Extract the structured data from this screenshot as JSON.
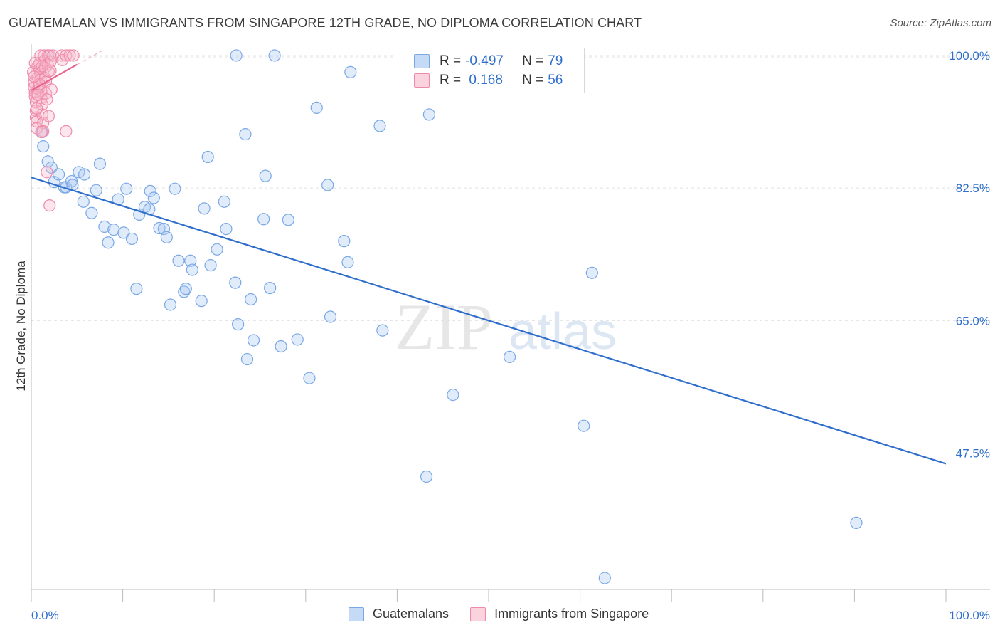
{
  "title": "GUATEMALAN VS IMMIGRANTS FROM SINGAPORE 12TH GRADE, NO DIPLOMA CORRELATION CHART",
  "source": "Source: ZipAtlas.com",
  "watermark": {
    "zip": "ZIP",
    "atlas": "atlas"
  },
  "legend": {
    "rows": [
      {
        "r_label": "R = ",
        "r_value": "-0.497",
        "n_label": "N = ",
        "n_value": "79",
        "color": "#a9c8f0"
      },
      {
        "r_label": "R = ",
        "r_value": " 0.168",
        "n_label": "N = ",
        "n_value": "56",
        "color": "#f7b8cb"
      }
    ]
  },
  "bottom_legend": [
    "Guatemalans",
    "Immigrants from Singapore"
  ],
  "chart_data": {
    "type": "scatter",
    "title": "GUATEMALAN VS IMMIGRANTS FROM SINGAPORE 12TH GRADE, NO DIPLOMA CORRELATION CHART",
    "xlabel": "",
    "ylabel": "12th Grade, No Diploma",
    "xlim": [
      0,
      100
    ],
    "ylim": [
      29.5,
      101.5
    ],
    "x_tick_labels": [
      "0.0%",
      "100.0%"
    ],
    "y_ticks": [
      100.0,
      82.5,
      65.0,
      47.5
    ],
    "y_tick_labels": [
      "100.0%",
      "82.5%",
      "65.0%",
      "47.5%"
    ],
    "grid": true,
    "series": [
      {
        "name": "Guatemalans",
        "color": "#7aa7e6",
        "trend": {
          "x": [
            0,
            100
          ],
          "y": [
            83.9,
            46.1
          ],
          "color": "#2f6fcb"
        },
        "points": [
          [
            1.2,
            89.9
          ],
          [
            1.3,
            88.0
          ],
          [
            1.8,
            86.0
          ],
          [
            2.2,
            85.2
          ],
          [
            2.5,
            83.3
          ],
          [
            3.0,
            84.3
          ],
          [
            3.6,
            82.6
          ],
          [
            3.8,
            82.6
          ],
          [
            4.4,
            83.4
          ],
          [
            4.5,
            82.9
          ],
          [
            5.2,
            84.6
          ],
          [
            5.8,
            84.3
          ],
          [
            7.5,
            85.7
          ],
          [
            5.7,
            80.7
          ],
          [
            6.6,
            79.2
          ],
          [
            7.1,
            82.2
          ],
          [
            8.0,
            77.4
          ],
          [
            9.0,
            77.0
          ],
          [
            8.4,
            75.3
          ],
          [
            9.5,
            81.0
          ],
          [
            10.1,
            76.6
          ],
          [
            10.4,
            82.4
          ],
          [
            11.0,
            75.8
          ],
          [
            11.5,
            69.2
          ],
          [
            11.8,
            79.0
          ],
          [
            12.4,
            80.0
          ],
          [
            12.9,
            79.7
          ],
          [
            13.0,
            82.1
          ],
          [
            13.4,
            81.2
          ],
          [
            14.0,
            77.2
          ],
          [
            14.5,
            77.1
          ],
          [
            14.8,
            76.0
          ],
          [
            15.2,
            67.1
          ],
          [
            15.7,
            82.4
          ],
          [
            16.1,
            72.9
          ],
          [
            16.7,
            68.8
          ],
          [
            16.9,
            69.2
          ],
          [
            17.4,
            72.9
          ],
          [
            17.6,
            71.7
          ],
          [
            18.6,
            67.6
          ],
          [
            18.9,
            79.8
          ],
          [
            19.3,
            86.6
          ],
          [
            19.6,
            72.3
          ],
          [
            20.3,
            74.4
          ],
          [
            21.1,
            80.7
          ],
          [
            21.3,
            77.1
          ],
          [
            22.3,
            70.0
          ],
          [
            22.6,
            64.5
          ],
          [
            22.4,
            100.0
          ],
          [
            23.4,
            89.6
          ],
          [
            23.6,
            59.9
          ],
          [
            24.0,
            67.8
          ],
          [
            24.3,
            62.4
          ],
          [
            25.4,
            78.4
          ],
          [
            25.6,
            84.1
          ],
          [
            26.1,
            69.3
          ],
          [
            26.6,
            100.0
          ],
          [
            27.3,
            61.6
          ],
          [
            28.1,
            78.3
          ],
          [
            29.1,
            62.5
          ],
          [
            30.4,
            57.4
          ],
          [
            31.2,
            93.1
          ],
          [
            32.7,
            65.5
          ],
          [
            32.4,
            82.9
          ],
          [
            34.2,
            75.5
          ],
          [
            34.6,
            72.7
          ],
          [
            34.9,
            97.8
          ],
          [
            38.4,
            63.7
          ],
          [
            38.1,
            90.7
          ],
          [
            43.2,
            44.4
          ],
          [
            43.5,
            92.2
          ],
          [
            46.1,
            55.2
          ],
          [
            52.3,
            60.2
          ],
          [
            55.7,
            100.0
          ],
          [
            60.4,
            51.1
          ],
          [
            61.3,
            71.3
          ],
          [
            62.7,
            31.0
          ],
          [
            90.2,
            38.3
          ],
          [
            2.0,
            100.0
          ]
        ]
      },
      {
        "name": "Immigrants from Singapore",
        "color": "#f08aaa",
        "trend": {
          "x": [
            0,
            5
          ],
          "y": [
            95.4,
            98.8
          ],
          "color": "#e8628c"
        },
        "trend_extension": {
          "x": [
            5,
            8
          ],
          "y": [
            98.8,
            100.8
          ]
        },
        "points": [
          [
            0.2,
            97.8
          ],
          [
            0.3,
            96.4
          ],
          [
            0.3,
            95.8
          ],
          [
            0.4,
            95.1
          ],
          [
            0.4,
            94.6
          ],
          [
            0.5,
            93.8
          ],
          [
            0.5,
            92.7
          ],
          [
            0.5,
            91.8
          ],
          [
            0.6,
            91.3
          ],
          [
            0.6,
            90.4
          ],
          [
            0.7,
            98.6
          ],
          [
            0.7,
            97.1
          ],
          [
            0.8,
            96.0
          ],
          [
            0.8,
            95.5
          ],
          [
            0.9,
            98.2
          ],
          [
            0.9,
            99.0
          ],
          [
            1.0,
            97.6
          ],
          [
            1.0,
            96.8
          ],
          [
            1.1,
            95.3
          ],
          [
            1.1,
            94.4
          ],
          [
            1.2,
            93.5
          ],
          [
            1.2,
            92.2
          ],
          [
            1.3,
            91.1
          ],
          [
            1.3,
            90.0
          ],
          [
            1.4,
            100.0
          ],
          [
            1.4,
            99.3
          ],
          [
            1.5,
            98.4
          ],
          [
            1.5,
            97.0
          ],
          [
            1.6,
            96.5
          ],
          [
            1.6,
            95.0
          ],
          [
            1.7,
            94.2
          ],
          [
            1.8,
            100.0
          ],
          [
            1.8,
            98.8
          ],
          [
            1.9,
            97.9
          ],
          [
            1.9,
            92.0
          ],
          [
            2.0,
            100.0
          ],
          [
            2.1,
            99.2
          ],
          [
            2.1,
            98.0
          ],
          [
            2.2,
            95.5
          ],
          [
            2.4,
            100.0
          ],
          [
            3.3,
            100.0
          ],
          [
            3.4,
            99.4
          ],
          [
            3.8,
            100.0
          ],
          [
            4.2,
            100.0
          ],
          [
            4.6,
            100.0
          ],
          [
            1.0,
            100.0
          ],
          [
            1.1,
            89.9
          ],
          [
            1.7,
            84.6
          ],
          [
            2.0,
            80.2
          ],
          [
            3.8,
            90.0
          ],
          [
            0.6,
            93.0
          ],
          [
            0.7,
            94.8
          ],
          [
            0.9,
            96.2
          ],
          [
            1.2,
            98.6
          ],
          [
            0.3,
            97.2
          ],
          [
            0.4,
            99.0
          ]
        ]
      }
    ],
    "marker_radius": 8
  }
}
